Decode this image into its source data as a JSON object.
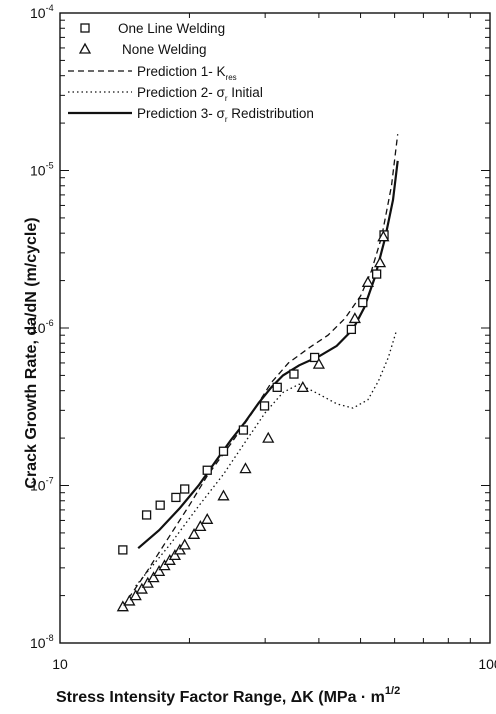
{
  "chart_data": {
    "type": "scatter",
    "xscale": "log",
    "yscale": "log",
    "xlim": [
      10,
      100
    ],
    "ylim": [
      1e-08,
      0.0001
    ],
    "xlabel": "Stress Intensity Factor Range, ΔK (MPa · m",
    "xlabel_exponent": "1/2",
    "ylabel": "Crack Growth Rate, da/dN (m/cycle)",
    "x_ticks": [
      {
        "value": 10,
        "label": "10"
      },
      {
        "value": 100,
        "label": "100"
      }
    ],
    "y_ticks": [
      {
        "value": 1e-08,
        "base": "10",
        "exp": "-8"
      },
      {
        "value": 1e-07,
        "base": "10",
        "exp": "-7"
      },
      {
        "value": 1e-06,
        "base": "10",
        "exp": "-6"
      },
      {
        "value": 1e-05,
        "base": "10",
        "exp": "-5"
      },
      {
        "value": 0.0001,
        "base": "10",
        "exp": "-4"
      }
    ],
    "grid": false,
    "legend_position": "top-left",
    "series": [
      {
        "name": "One Line Welding",
        "kind": "points",
        "marker": "square",
        "points": [
          [
            14.0,
            3.9e-08
          ],
          [
            15.9,
            6.5e-08
          ],
          [
            17.1,
            7.5e-08
          ],
          [
            18.6,
            8.4e-08
          ],
          [
            19.5,
            9.5e-08
          ],
          [
            22.0,
            1.25e-07
          ],
          [
            24.0,
            1.65e-07
          ],
          [
            26.7,
            2.25e-07
          ],
          [
            29.9,
            3.2e-07
          ],
          [
            32.0,
            4.2e-07
          ],
          [
            35.0,
            5.1e-07
          ],
          [
            39.1,
            6.5e-07
          ],
          [
            47.6,
            9.8e-07
          ],
          [
            50.6,
            1.45e-06
          ],
          [
            54.5,
            2.2e-06
          ],
          [
            56.7,
            3.9e-06
          ]
        ]
      },
      {
        "name": "None Welding",
        "kind": "points",
        "marker": "triangle",
        "points": [
          [
            14.0,
            1.7e-08
          ],
          [
            14.5,
            1.85e-08
          ],
          [
            15.0,
            2e-08
          ],
          [
            15.5,
            2.2e-08
          ],
          [
            16.0,
            2.4e-08
          ],
          [
            16.5,
            2.6e-08
          ],
          [
            17.0,
            2.85e-08
          ],
          [
            17.5,
            3.1e-08
          ],
          [
            18.0,
            3.35e-08
          ],
          [
            18.5,
            3.6e-08
          ],
          [
            19.0,
            3.9e-08
          ],
          [
            19.5,
            4.2e-08
          ],
          [
            20.5,
            4.9e-08
          ],
          [
            21.2,
            5.5e-08
          ],
          [
            22.0,
            6.1e-08
          ],
          [
            24.0,
            8.6e-08
          ],
          [
            27.0,
            1.28e-07
          ],
          [
            30.5,
            2e-07
          ],
          [
            36.7,
            4.2e-07
          ],
          [
            40.0,
            5.9e-07
          ],
          [
            48.5,
            1.15e-06
          ],
          [
            52.0,
            1.95e-06
          ],
          [
            55.5,
            2.6e-06
          ],
          [
            56.5,
            3.8e-06
          ]
        ]
      },
      {
        "name": "Prediction 1- K",
        "name_subscript": "res",
        "kind": "line",
        "dash": "dashed",
        "points": [
          [
            14.0,
            1.7e-08
          ],
          [
            16.0,
            2.9e-08
          ],
          [
            18.0,
            4.8e-08
          ],
          [
            20.0,
            7.5e-08
          ],
          [
            22.0,
            1.15e-07
          ],
          [
            25.0,
            1.85e-07
          ],
          [
            28.0,
            2.9e-07
          ],
          [
            31.0,
            4.5e-07
          ],
          [
            34.0,
            6e-07
          ],
          [
            38.0,
            7.5e-07
          ],
          [
            42.0,
            9e-07
          ],
          [
            46.0,
            1.15e-06
          ],
          [
            50.0,
            1.6e-06
          ],
          [
            53.0,
            2.3e-06
          ],
          [
            56.0,
            3.8e-06
          ],
          [
            59.0,
            8e-06
          ],
          [
            61.0,
            1.7e-05
          ]
        ]
      },
      {
        "name": "Prediction 2- σ",
        "name_subscript": "r",
        "name_suffix": " Initial",
        "kind": "line",
        "dash": "dotted",
        "points": [
          [
            15.0,
            2.3e-08
          ],
          [
            18.0,
            4.2e-08
          ],
          [
            21.0,
            7.4e-08
          ],
          [
            24.0,
            1.18e-07
          ],
          [
            27.0,
            1.9e-07
          ],
          [
            30.0,
            2.9e-07
          ],
          [
            33.0,
            3.9e-07
          ],
          [
            36.0,
            4.4e-07
          ],
          [
            40.0,
            3.8e-07
          ],
          [
            44.0,
            3.3e-07
          ],
          [
            48.0,
            3.1e-07
          ],
          [
            52.0,
            3.5e-07
          ],
          [
            55.0,
            4.6e-07
          ],
          [
            58.0,
            6.5e-07
          ],
          [
            60.5,
            9.5e-07
          ]
        ]
      },
      {
        "name": "Prediction 3- σ",
        "name_subscript": "r",
        "name_suffix": " Redistribution",
        "kind": "line",
        "dash": "solid",
        "points": [
          [
            15.2,
            4e-08
          ],
          [
            17.0,
            5.2e-08
          ],
          [
            19.0,
            7.2e-08
          ],
          [
            21.0,
            1e-07
          ],
          [
            23.0,
            1.42e-07
          ],
          [
            25.0,
            1.95e-07
          ],
          [
            27.0,
            2.55e-07
          ],
          [
            29.0,
            3.35e-07
          ],
          [
            31.0,
            4.2e-07
          ],
          [
            33.0,
            5e-07
          ],
          [
            36.0,
            5.8e-07
          ],
          [
            40.0,
            6.6e-07
          ],
          [
            44.0,
            7.7e-07
          ],
          [
            48.0,
            9.8e-07
          ],
          [
            51.0,
            1.35e-06
          ],
          [
            54.0,
            2.1e-06
          ],
          [
            57.0,
            3.7e-06
          ],
          [
            59.5,
            6.5e-06
          ],
          [
            61.0,
            1.15e-05
          ]
        ]
      }
    ]
  }
}
